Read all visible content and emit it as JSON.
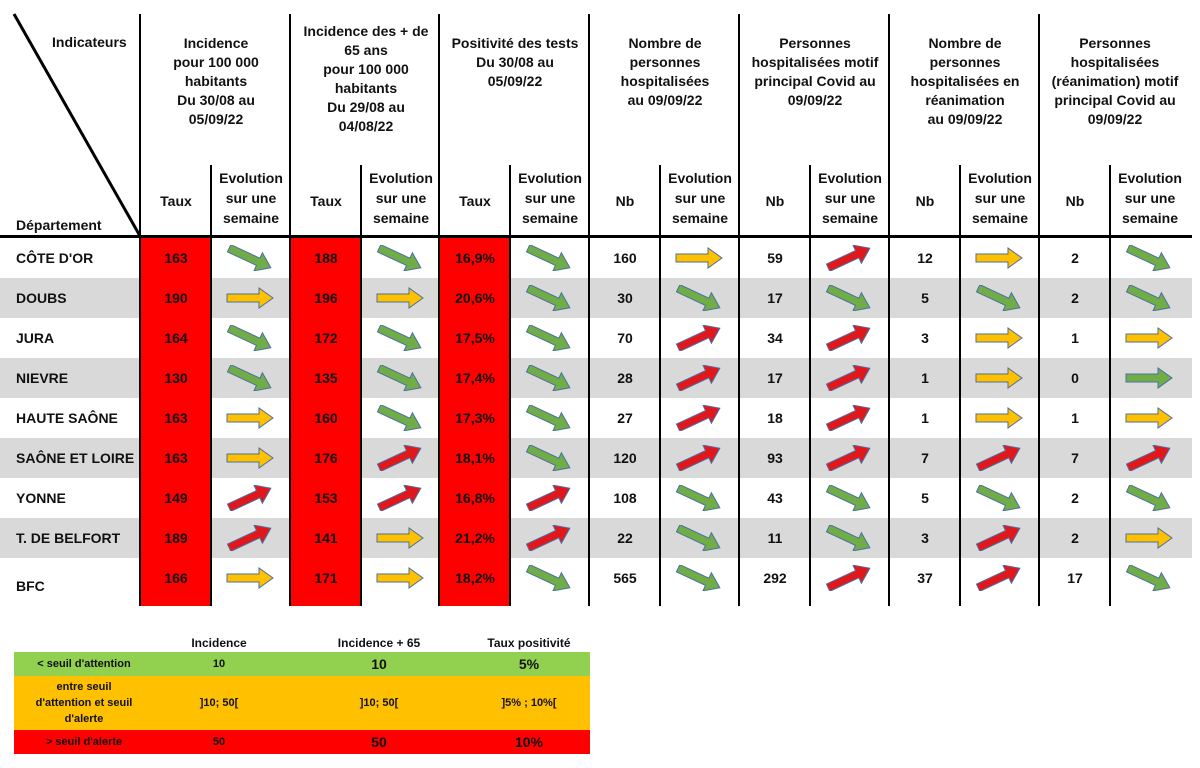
{
  "header": {
    "indicateurs": "Indicateurs",
    "departement": "Département",
    "groups": [
      {
        "title": [
          "Incidence",
          "pour 100 000",
          "habitants",
          "Du 30/08 au",
          "05/09/22"
        ]
      },
      {
        "title": [
          "Incidence des + de",
          "65 ans",
          "pour 100 000",
          "habitants",
          "Du 29/08 au",
          "04/08/22"
        ]
      },
      {
        "title": [
          "Positivité des tests",
          "Du 30/08 au",
          "05/09/22"
        ]
      },
      {
        "title": [
          "Nombre de",
          "personnes",
          "hospitalisées",
          "au 09/09/22"
        ]
      },
      {
        "title": [
          "Personnes",
          "hospitalisées motif",
          "principal Covid au",
          "09/09/22"
        ]
      },
      {
        "title": [
          "Nombre de",
          "personnes",
          "hospitalisées en",
          "réanimation",
          "au 09/09/22"
        ]
      },
      {
        "title": [
          "Personnes",
          "hospitalisées",
          "(réanimation) motif",
          "principal Covid au",
          "09/09/22"
        ]
      }
    ],
    "sub_value": [
      "Taux",
      "Taux",
      "Taux",
      "Nb",
      "Nb",
      "Nb",
      "Nb"
    ],
    "sub_evolution": [
      "Evolution",
      "sur une",
      "semaine"
    ]
  },
  "rows": [
    {
      "dep": "CÔTE D'OR",
      "v": [
        "163",
        "188",
        "16,9%",
        "160",
        "59",
        "12",
        "2"
      ],
      "a": [
        "green-down",
        "green-down",
        "green-down",
        "orange-right",
        "red-up",
        "orange-right",
        "green-down"
      ]
    },
    {
      "dep": "DOUBS",
      "v": [
        "190",
        "196",
        "20,6%",
        "30",
        "17",
        "5",
        "2"
      ],
      "a": [
        "orange-right",
        "orange-right",
        "green-down",
        "green-down",
        "green-down",
        "green-down",
        "green-down"
      ]
    },
    {
      "dep": "JURA",
      "v": [
        "164",
        "172",
        "17,5%",
        "70",
        "34",
        "3",
        "1"
      ],
      "a": [
        "green-down",
        "green-down",
        "green-down",
        "red-up",
        "red-up",
        "orange-right",
        "orange-right"
      ]
    },
    {
      "dep": "NIEVRE",
      "v": [
        "130",
        "135",
        "17,4%",
        "28",
        "17",
        "1",
        "0"
      ],
      "a": [
        "green-down",
        "green-down",
        "green-down",
        "red-up",
        "red-up",
        "orange-right",
        "green-right"
      ]
    },
    {
      "dep": "HAUTE SAÔNE",
      "v": [
        "163",
        "160",
        "17,3%",
        "27",
        "18",
        "1",
        "1"
      ],
      "a": [
        "orange-right",
        "green-down",
        "green-down",
        "red-up",
        "red-up",
        "orange-right",
        "orange-right"
      ]
    },
    {
      "dep": "SAÔNE ET LOIRE",
      "v": [
        "163",
        "176",
        "18,1%",
        "120",
        "93",
        "7",
        "7"
      ],
      "a": [
        "orange-right",
        "red-up",
        "green-down",
        "red-up",
        "red-up",
        "red-up",
        "red-up"
      ]
    },
    {
      "dep": "YONNE",
      "v": [
        "149",
        "153",
        "16,8%",
        "108",
        "43",
        "5",
        "2"
      ],
      "a": [
        "red-up",
        "red-up",
        "red-up",
        "green-down",
        "green-down",
        "green-down",
        "green-down"
      ]
    },
    {
      "dep": "T. DE BELFORT",
      "v": [
        "189",
        "141",
        "21,2%",
        "22",
        "11",
        "3",
        "2"
      ],
      "a": [
        "red-up",
        "orange-right",
        "red-up",
        "green-down",
        "green-down",
        "red-up",
        "orange-right"
      ]
    },
    {
      "dep": "BFC",
      "v": [
        "166",
        "171",
        "18,2%",
        "565",
        "292",
        "37",
        "17"
      ],
      "a": [
        "orange-right",
        "orange-right",
        "green-down",
        "green-down",
        "red-up",
        "red-up",
        "green-down"
      ]
    }
  ],
  "legend": {
    "headers": [
      "Incidence",
      "Incidence + 65",
      "Taux positivité"
    ],
    "rows": [
      {
        "label": [
          "< seuil d'attention"
        ],
        "values": [
          "10",
          "10",
          "5%"
        ],
        "color": "#92d050"
      },
      {
        "label": [
          "entre seuil",
          "d'attention et seuil",
          "d'alerte"
        ],
        "values": [
          "]10; 50[",
          "]10; 50[",
          "]5% ; 10%["
        ],
        "color": "#ffc000"
      },
      {
        "label": [
          "> seuil d'alerte"
        ],
        "values": [
          "50",
          "50",
          "10%"
        ],
        "color": "#ff0000"
      }
    ]
  },
  "colors": {
    "red": "#ff0000",
    "row_alt": "#d9d9d9",
    "arrow_green": "#70ad47",
    "arrow_orange": "#ffc000",
    "arrow_red": "#e0181b",
    "arrow_stroke": "#4a6fa5"
  }
}
